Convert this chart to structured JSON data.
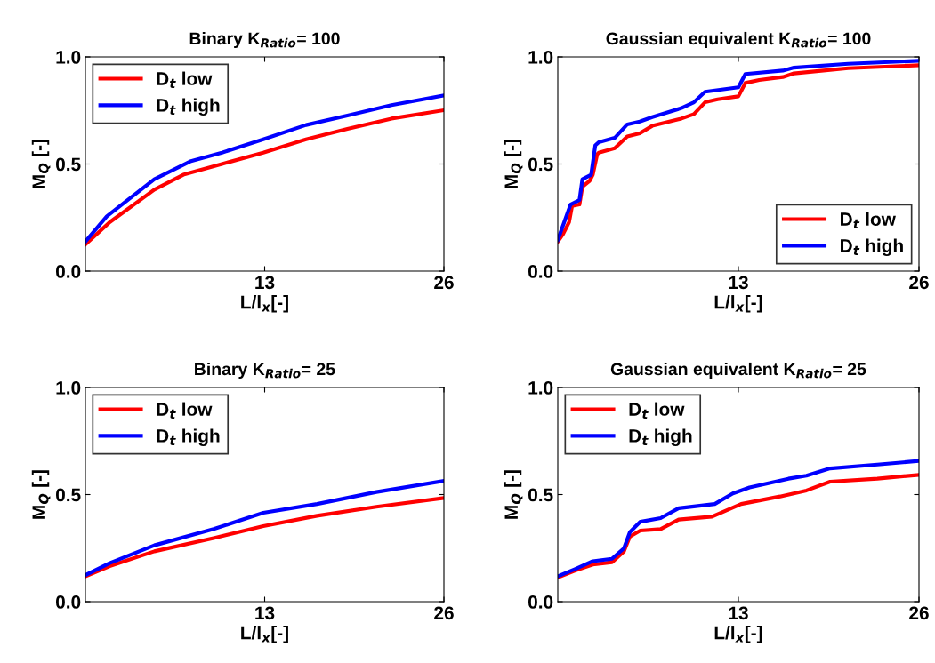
{
  "chart_data": [
    {
      "type": "line",
      "title": "Binary K$_{Ratio}$= 100",
      "xlabel": "L/l$_{x}$[-]",
      "ylabel": "M$_{Q}$ [-]",
      "xlim": [
        0,
        26
      ],
      "xticks": [
        13,
        26
      ],
      "ylim": [
        0,
        1
      ],
      "yticks": [
        {
          "value": 0,
          "label": "0.0"
        },
        {
          "value": 0.5,
          "label": "0.5"
        },
        {
          "value": 1,
          "label": "1.0"
        }
      ],
      "legend": "top left",
      "grid": false,
      "series": [
        {
          "name": "D$_{t}$ low",
          "color": "#ff0000",
          "x": [
            0,
            1.76,
            5.0,
            7.1,
            9.9,
            12.9,
            16,
            19,
            22.2,
            26
          ],
          "values": [
            0.125,
            0.228,
            0.38,
            0.45,
            0.5,
            0.553,
            0.615,
            0.664,
            0.712,
            0.751
          ]
        },
        {
          "name": "D$_{t}$ high",
          "color": "#0000ff",
          "x": [
            0,
            1.55,
            5.0,
            7.6,
            9.9,
            12.9,
            16,
            19,
            22.2,
            26
          ],
          "values": [
            0.138,
            0.256,
            0.429,
            0.512,
            0.553,
            0.615,
            0.682,
            0.726,
            0.775,
            0.82
          ]
        }
      ]
    },
    {
      "type": "line",
      "title": "Gaussian equivalent K$_{Ratio}$= 100",
      "xlabel": "L/l$_{x}$[-]",
      "ylabel": "M$_{Q}$ [-]",
      "xlim": [
        0,
        26
      ],
      "xticks": [
        13,
        26
      ],
      "ylim": [
        0,
        1
      ],
      "yticks": [
        {
          "value": 0,
          "label": "0.0"
        },
        {
          "value": 0.5,
          "label": "0.5"
        },
        {
          "value": 1,
          "label": "1.0"
        }
      ],
      "legend": "bottom right",
      "grid": false,
      "series": [
        {
          "name": "D$_{t}$ low",
          "color": "#ff0000",
          "x": [
            0,
            0.38,
            0.81,
            1.03,
            1.56,
            1.77,
            2.3,
            2.52,
            2.84,
            2.95,
            4.1,
            5.0,
            5.9,
            6.8,
            8.9,
            9.8,
            10.6,
            11.5,
            13.0,
            13.5,
            14.5,
            16.2,
            17.0,
            18.8,
            20.9,
            26
          ],
          "values": [
            0.138,
            0.173,
            0.228,
            0.304,
            0.311,
            0.394,
            0.422,
            0.45,
            0.546,
            0.553,
            0.574,
            0.629,
            0.643,
            0.678,
            0.712,
            0.733,
            0.788,
            0.802,
            0.816,
            0.878,
            0.892,
            0.906,
            0.923,
            0.934,
            0.947,
            0.961
          ]
        },
        {
          "name": "D$_{t}$ high",
          "color": "#0000ff",
          "x": [
            0,
            0.38,
            0.92,
            1.56,
            1.77,
            2.4,
            2.7,
            2.95,
            4.1,
            5.0,
            5.9,
            6.8,
            8.9,
            9.8,
            10.6,
            13.0,
            13.5,
            16.2,
            17.0,
            20.9,
            26
          ],
          "values": [
            0.145,
            0.214,
            0.311,
            0.332,
            0.429,
            0.45,
            0.587,
            0.602,
            0.622,
            0.685,
            0.698,
            0.719,
            0.761,
            0.788,
            0.837,
            0.858,
            0.92,
            0.936,
            0.95,
            0.968,
            0.982
          ]
        }
      ]
    },
    {
      "type": "line",
      "title": "Binary K$_{Ratio}$= 25",
      "xlabel": "L/l$_{x}$[-]",
      "ylabel": "M$_{Q}$ [-]",
      "xlim": [
        0,
        26
      ],
      "xticks": [
        13,
        26
      ],
      "ylim": [
        0,
        1
      ],
      "yticks": [
        {
          "value": 0,
          "label": "0.0"
        },
        {
          "value": 0.5,
          "label": "0.5"
        },
        {
          "value": 1,
          "label": "1.0"
        }
      ],
      "legend": "top left",
      "grid": false,
      "series": [
        {
          "name": "D$_{t}$ low",
          "color": "#ff0000",
          "x": [
            0,
            1.76,
            5.0,
            9.3,
            12.9,
            16.8,
            21.1,
            26
          ],
          "values": [
            0.118,
            0.166,
            0.235,
            0.297,
            0.353,
            0.401,
            0.443,
            0.484
          ]
        },
        {
          "name": "D$_{t}$ high",
          "color": "#0000ff",
          "x": [
            0,
            1.76,
            5.0,
            9.3,
            12.9,
            16.8,
            21.1,
            26
          ],
          "values": [
            0.124,
            0.18,
            0.263,
            0.339,
            0.415,
            0.456,
            0.512,
            0.564
          ]
        }
      ]
    },
    {
      "type": "line",
      "title": "Gaussian equivalent K$_{Ratio}$= 25",
      "xlabel": "L/l$_{x}$[-]",
      "ylabel": "M$_{Q}$ [-]",
      "xlim": [
        0,
        26
      ],
      "xticks": [
        13,
        26
      ],
      "ylim": [
        0,
        1
      ],
      "yticks": [
        {
          "value": 0,
          "label": "0.0"
        },
        {
          "value": 0.5,
          "label": "0.5"
        },
        {
          "value": 1,
          "label": "1.0"
        }
      ],
      "legend": "top left",
      "grid": false,
      "series": [
        {
          "name": "D$_{t}$ low",
          "color": "#ff0000",
          "x": [
            0,
            1.24,
            2.52,
            3.9,
            4.76,
            5.19,
            5.94,
            7.4,
            8.7,
            11.1,
            13.2,
            16,
            17.9,
            19.6,
            23,
            26
          ],
          "values": [
            0.113,
            0.145,
            0.173,
            0.184,
            0.235,
            0.304,
            0.332,
            0.339,
            0.383,
            0.397,
            0.456,
            0.491,
            0.519,
            0.56,
            0.574,
            0.592
          ]
        },
        {
          "name": "D$_{t}$ high",
          "color": "#0000ff",
          "x": [
            0,
            1.24,
            2.52,
            3.9,
            4.76,
            5.19,
            5.94,
            7.4,
            8.7,
            11.3,
            12.6,
            13.8,
            16.6,
            17.9,
            19.6,
            23,
            26
          ],
          "values": [
            0.118,
            0.152,
            0.189,
            0.2,
            0.249,
            0.325,
            0.373,
            0.39,
            0.436,
            0.456,
            0.505,
            0.533,
            0.574,
            0.588,
            0.622,
            0.64,
            0.657
          ]
        }
      ]
    }
  ]
}
